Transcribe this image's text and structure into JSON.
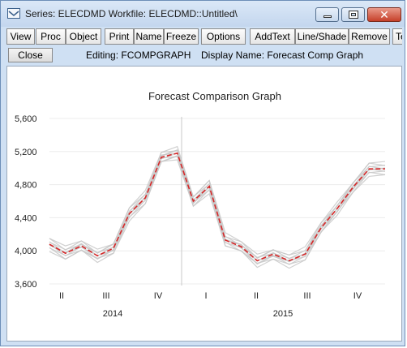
{
  "window": {
    "title": "Series: ELECDMD   Workfile: ELECDMD::Untitled\\",
    "controls": {
      "minimize": "minimize",
      "maximize": "maximize",
      "close": "✕"
    }
  },
  "toolbar": {
    "buttons": [
      "View",
      "Proc",
      "Object",
      "Print",
      "Name",
      "Freeze",
      "Options",
      "AddText",
      "Line/Shade",
      "Remove",
      "Te"
    ]
  },
  "status": {
    "close_label": "Close",
    "editing": "Editing: FCOMPGRAPH",
    "display_name": "Display Name: Forecast Comp Graph"
  },
  "colors": {
    "forecast": "#d62728",
    "simulations": "#c8c8c8",
    "divider": "#bbbbbb"
  },
  "chart_data": {
    "type": "line",
    "title": "Forecast Comparison Graph",
    "x_ticks": [
      "II",
      "III",
      "IV",
      "I",
      "II",
      "III",
      "IV"
    ],
    "x_groups": [
      "2014",
      "2015"
    ],
    "yticks": [
      3600,
      4000,
      4400,
      4800,
      5200,
      5600
    ],
    "ytick_labels": [
      "3,600",
      "4,000",
      "4,400",
      "4,800",
      "5,200",
      "5,600"
    ],
    "ylim": [
      3600,
      5600
    ],
    "grid": true,
    "x": [
      0,
      1,
      2,
      3,
      4,
      5,
      6,
      7,
      8,
      9,
      10,
      11,
      12,
      13,
      14,
      15,
      16,
      17,
      18,
      19,
      20,
      21
    ],
    "series": [
      {
        "style": "dashed",
        "color": "#d62728",
        "values": [
          4080,
          3970,
          4060,
          3940,
          4030,
          4450,
          4640,
          5130,
          5180,
          4600,
          4780,
          4130,
          4050,
          3880,
          3960,
          3880,
          3960,
          4280,
          4510,
          4770,
          4990,
          4990
        ]
      }
    ]
  }
}
